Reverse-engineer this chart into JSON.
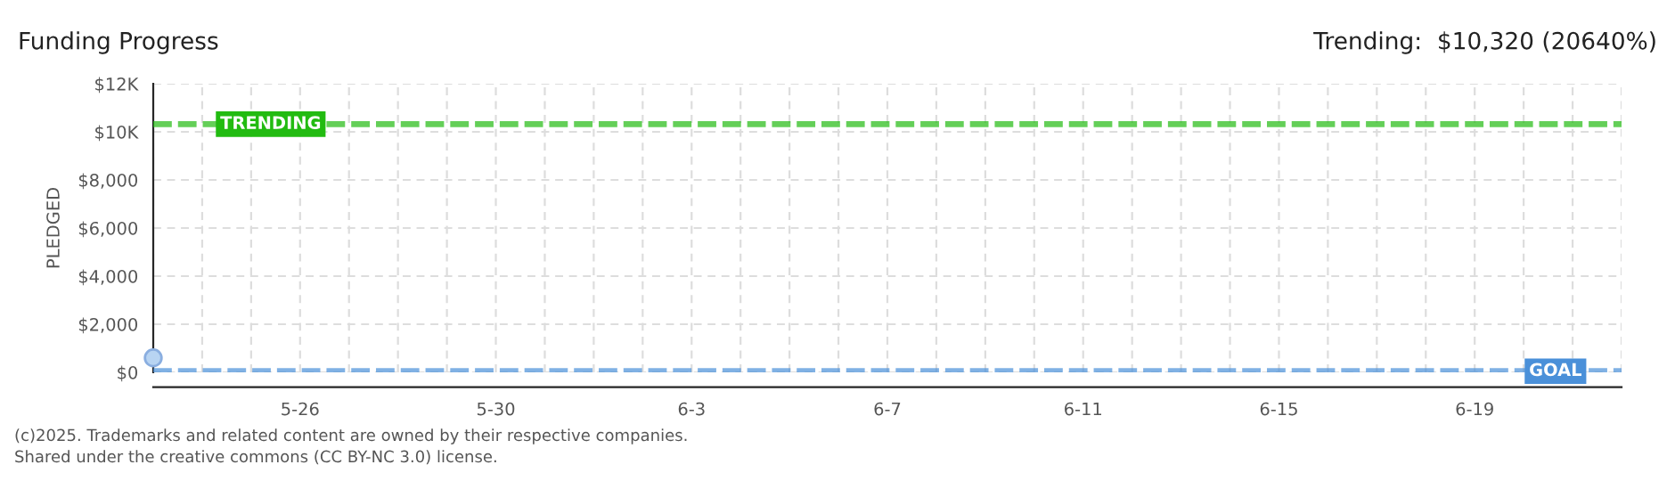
{
  "chart_data": {
    "type": "scatter",
    "title": "Funding Progress",
    "subtitle": "Trending:  $10,320 (20640%)",
    "ylabel": "PLEDGED",
    "x": [
      "2025-05-23"
    ],
    "series": [
      {
        "color": "#b8d4f2",
        "values": [
          600
        ]
      }
    ],
    "xlim": [
      "2025-05-23",
      "2025-06-22"
    ],
    "xticks": [
      {
        "value": "2025-05-23",
        "label": null
      },
      {
        "value": "2025-05-24",
        "label": null
      },
      {
        "value": "2025-05-25",
        "label": null
      },
      {
        "value": "2025-05-26",
        "label": "5-26"
      },
      {
        "value": "2025-05-27",
        "label": null
      },
      {
        "value": "2025-05-28",
        "label": null
      },
      {
        "value": "2025-05-29",
        "label": null
      },
      {
        "value": "2025-05-30",
        "label": "5-30"
      },
      {
        "value": "2025-05-31",
        "label": null
      },
      {
        "value": "2025-06-01",
        "label": null
      },
      {
        "value": "2025-06-02",
        "label": null
      },
      {
        "value": "2025-06-03",
        "label": "6-3"
      },
      {
        "value": "2025-06-04",
        "label": null
      },
      {
        "value": "2025-06-05",
        "label": null
      },
      {
        "value": "2025-06-06",
        "label": null
      },
      {
        "value": "2025-06-07",
        "label": "6-7"
      },
      {
        "value": "2025-06-08",
        "label": null
      },
      {
        "value": "2025-06-09",
        "label": null
      },
      {
        "value": "2025-06-10",
        "label": null
      },
      {
        "value": "2025-06-11",
        "label": "6-11"
      },
      {
        "value": "2025-06-12",
        "label": null
      },
      {
        "value": "2025-06-13",
        "label": null
      },
      {
        "value": "2025-06-14",
        "label": null
      },
      {
        "value": "2025-06-15",
        "label": "6-15"
      },
      {
        "value": "2025-06-16",
        "label": null
      },
      {
        "value": "2025-06-17",
        "label": null
      },
      {
        "value": "2025-06-18",
        "label": null
      },
      {
        "value": "2025-06-19",
        "label": "6-19"
      },
      {
        "value": "2025-06-20",
        "label": null
      },
      {
        "value": "2025-06-21",
        "label": null
      },
      {
        "value": "2025-06-22",
        "label": null
      }
    ],
    "ylim": [
      0,
      12000
    ],
    "yticks": [
      {
        "value": 0,
        "label": "$0"
      },
      {
        "value": 2000,
        "label": "$2,000"
      },
      {
        "value": 4000,
        "label": "$4,000"
      },
      {
        "value": 6000,
        "label": "$6,000"
      },
      {
        "value": 8000,
        "label": "$8,000"
      },
      {
        "value": 10000,
        "label": "$10K"
      },
      {
        "value": 12000,
        "label": "$12K"
      }
    ],
    "ref_lines": [
      {
        "axis": "y",
        "value": 10320,
        "label": "TRENDING",
        "color": "#22bb11",
        "line_style": "dashed"
      },
      {
        "axis": "y",
        "value": 50,
        "label": "GOAL",
        "color": "#4a90d9",
        "line_style": "dashed"
      }
    ],
    "grid": true,
    "marker": "circle",
    "annotations": [
      "(c)2025. Trademarks and related content are owned by their respective companies.",
      "Shared under the creative commons (CC BY-NC 3.0) license."
    ]
  }
}
